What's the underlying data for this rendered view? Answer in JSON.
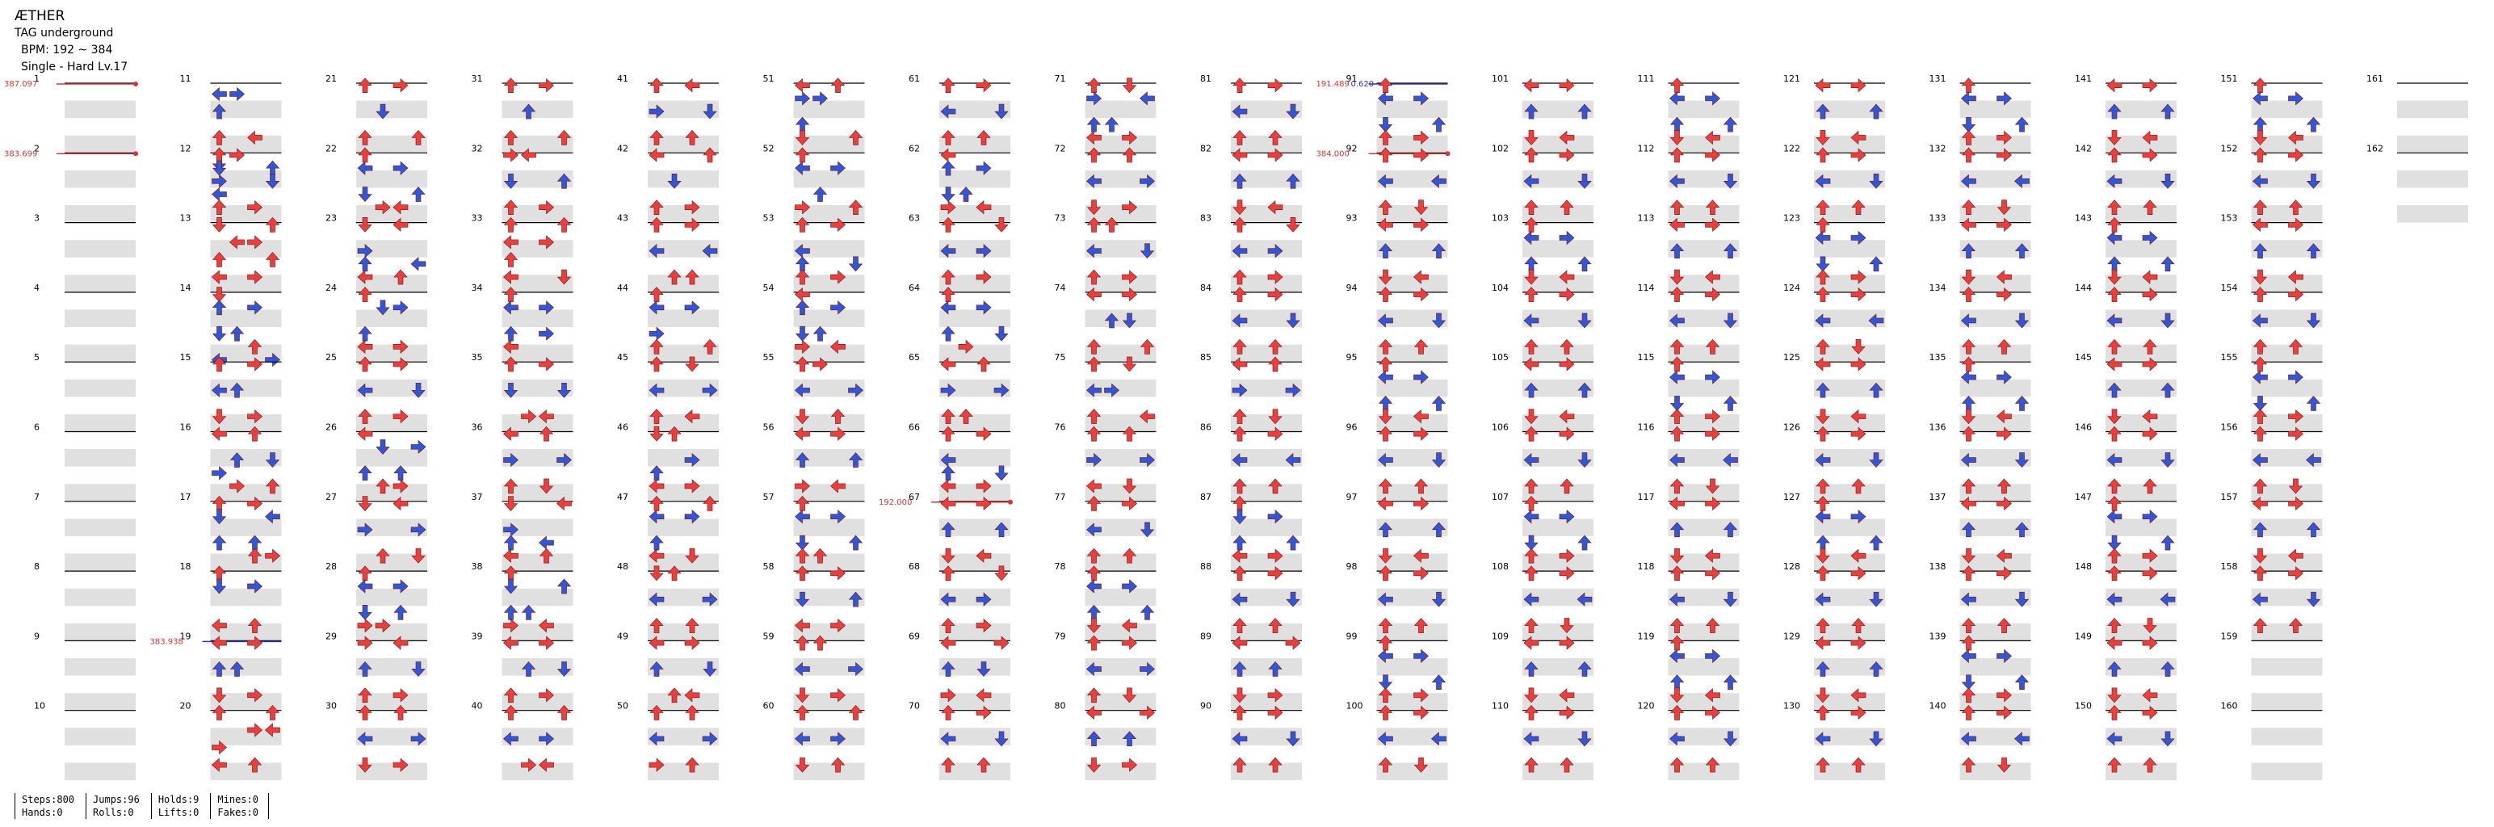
{
  "header": {
    "title": "ÆTHER",
    "subtitle": "TAG underground",
    "bpm": "BPM: 192 ~ 384",
    "difficulty": "Single - Hard  Lv.17"
  },
  "colors": {
    "quarter": "#e8403e",
    "eighth": "#3057d8",
    "hold": "#9be39b",
    "mine": "#f2d64a",
    "bpm_marker": "#d83434",
    "stop_marker": "#3030c8",
    "row_band": "#e0e0e0"
  },
  "measures": [
    {
      "n": "1",
      "bpm": "387.097",
      "notes": ""
    },
    {
      "n": "2",
      "bpm": "383.699",
      "notes": ""
    },
    {
      "n": "3",
      "notes": ""
    },
    {
      "n": "4",
      "notes": ""
    },
    {
      "n": "5",
      "notes": ""
    },
    {
      "n": "6",
      "notes": ""
    },
    {
      "n": "7",
      "notes": ""
    },
    {
      "n": "8",
      "notes": ""
    },
    {
      "n": "9",
      "notes": ""
    },
    {
      "n": "10",
      "notes": ""
    },
    {
      "n": "11",
      "notes": "2r:0L,1R;6r:0U;12r:0U,2L;18r:0D"
    },
    {
      "n": "12",
      "notes": "0U,1R;3r:0D,3U;6r:0R,3D;9r:0L;12r:0U,2R"
    },
    {
      "n": "13",
      "notes": "0D,3U;4r:1L,2R;8r:0U,3U;12r:0L,2R"
    },
    {
      "n": "14",
      "notes": "0D;3r:0U,2R;9r:0D,1U;12r:2U;15r:0L,3R"
    },
    {
      "n": "15",
      "notes": "0U,2R;6r:0L,1U;12r:0D,2R"
    },
    {
      "n": "16",
      "notes": "0L,2U;6r:1U,3D;9r:0R;12r:1R,3U"
    },
    {
      "n": "17",
      "notes": "0U,2R;3r:0D,3L;9r:0U,2U;12r:2U,3R"
    },
    {
      "n": "18",
      "notes": "0U;3r:0D,2R;12r:0L,2U"
    },
    {
      "n": "19",
      "stop": "383.938",
      "notes": "0L,2R;6r:0U,1U;12r:0D,2R"
    },
    {
      "n": "20",
      "notes": "0U,3U;4r:2R,3L;8r:0R;12r:0L,2U"
    },
    {
      "n": "21",
      "notes": "0U,2R;6r:1D;12r:0U,3U"
    },
    {
      "n": "22",
      "notes": "0U;3r:0L,2R;9r:0D,3U;12r:1R,2L"
    },
    {
      "n": "23",
      "notes": "0D,2L;6r:0R;9r:0U,3L;12r:0L,2U"
    },
    {
      "n": "24",
      "notes": "0U;3r:1D,2R;9r:0U;12r:0L,2R"
    },
    {
      "n": "25",
      "notes": "0U,2R;6r:0L,3D;12r:0U,2R"
    },
    {
      "n": "26",
      "notes": "0L;3r:1D,3R;9r:0U,2U;12r:1U,2R"
    },
    {
      "n": "27",
      "notes": "0D,2L;6r:0R,3R;12r:1U,3D"
    },
    {
      "n": "28",
      "notes": "0U;3r:0L,2R;9r:0D,2U;12r:0R,1R"
    },
    {
      "n": "29",
      "notes": "0R,2L;6r:0U,3D;12r:0U,2R"
    },
    {
      "n": "30",
      "notes": "0U,2U;6r:0L,3R;12r:0D,2R"
    },
    {
      "n": "31",
      "notes": "0U,2R;6r:1U;12r:0U,3U"
    },
    {
      "n": "32",
      "notes": "0R,1L;6r:0D,3U;12r:0U,2R"
    },
    {
      "n": "33",
      "notes": "0U,3U;4r:0L,2R;8r:0U;12r:0L,3D"
    },
    {
      "n": "34",
      "notes": "0U;3r:0L,2R;9r:0U,2R;12r:0L"
    },
    {
      "n": "35",
      "notes": "0U,2R;6r:0D,3D;12r:1R,2L"
    },
    {
      "n": "36",
      "notes": "0L,2U;6r:0R,3R;12r:0U,2D"
    },
    {
      "n": "37",
      "notes": "0D,3L;6r:0R;9r:0U,2L;12r:0L,2U"
    },
    {
      "n": "38",
      "notes": "0U;3r:0D,3U;9r:0U,1U;12r:0R,2L"
    },
    {
      "n": "39",
      "notes": "0L,2R;6r:1U,3D;12r:0U,2R"
    },
    {
      "n": "40",
      "notes": "0U,3U;6r:0L,2R;12r:1R,2L"
    },
    {
      "n": "41",
      "notes": "0U,2L;6r:0R,3D;12r:0U,2U"
    },
    {
      "n": "42",
      "notes": "0L,3U;6r:1D;12r:0U,2R"
    },
    {
      "n": "43",
      "notes": "0U,2R;6r:0L,3L;12r:1U,2U"
    },
    {
      "n": "44",
      "notes": "0U;3r:0L,2R;9r:0R;12r:0U,3U"
    },
    {
      "n": "45",
      "notes": "0U,2D;6r:0L,3R;12r:0U,2L"
    },
    {
      "n": "46",
      "notes": "0D,1U;6r:2R;9r:0U;12r:0L,2R"
    },
    {
      "n": "47",
      "notes": "0U,3U;3r:0L,2R;9r:0U;12r:0L,2D"
    },
    {
      "n": "48",
      "notes": "0D,1U;6r:0L,3R;12r:0U,2U"
    },
    {
      "n": "49",
      "notes": "0L,2R;6r:0U,3D;12r:1U,2L"
    },
    {
      "n": "50",
      "notes": "0U,2U;6r:0L,3R;12r:0R,2U"
    },
    {
      "n": "51",
      "notes": "0L,2U;3r:0R,1R;9r:0U;12r:0D,3U"
    },
    {
      "n": "52",
      "notes": "0U;3r:0L,2R;9r:1U;12r:0R,3U"
    },
    {
      "n": "53",
      "notes": "0U,2R;6r:0L;9r:0U,3D;12r:0U,2R"
    },
    {
      "n": "54",
      "notes": "0L;3r:0U,2R;9r:0D,1U;12r:0R,2L"
    },
    {
      "n": "55",
      "notes": "0U,1R;6r:0L,3R;12r:0D,2U"
    },
    {
      "n": "56",
      "notes": "0L,2R;6r:0U,3U;12r:0R,2L"
    },
    {
      "n": "57",
      "notes": "0U;3r:0L,2R;9r:0D,3U;12r:0U,1U"
    },
    {
      "n": "58",
      "notes": "0U,2R;6r:0D,3U;12r:0L,2R"
    },
    {
      "n": "59",
      "notes": "0U,1U;6r:0L,3R;12r:0D,2R"
    },
    {
      "n": "60",
      "notes": "0U,3U;6r:0L,2R;12r:0D,2U"
    },
    {
      "n": "61",
      "notes": "0U,2R;6r:0L,3D;12r:0U,2U"
    },
    {
      "n": "62",
      "notes": "0L;3r:0U,2R;9r:0D,1U;12r:0R,2L"
    },
    {
      "n": "63",
      "notes": "0U,3D;6r:0L,2R;12r:0U,2R"
    },
    {
      "n": "64",
      "notes": "0U;3r:0L,2R;9r:0U,3D;12r:1R"
    },
    {
      "n": "65",
      "notes": "0L,2U;6r:0R,3R;12r:0U,1U"
    },
    {
      "n": "66",
      "notes": "0U,2R;6r:0L;9r:0U,3D;12r:0L,2R"
    },
    {
      "n": "67",
      "bpm": "192.000",
      "notes": "0L,2R;6r:0U,3U;12r:0D,2L"
    },
    {
      "n": "68",
      "notes": "0U,3D;6r:0L,2R;12r:0U,2R"
    },
    {
      "n": "69",
      "notes": "0L,3R;6r:0U,2D;12r:0R,2L"
    },
    {
      "n": "70",
      "notes": "0U,2R;6r:0L,3D;12r:0U,2U"
    },
    {
      "n": "71",
      "notes": "0U,2D;3r:0R,3L;9r:0U,1U;12r:0L,2R"
    },
    {
      "n": "72",
      "notes": "0U,2U;6r:0L,3R;12r:0D,2R"
    },
    {
      "n": "73",
      "notes": "0U,1U;6r:0L,3D;12r:0U,2R"
    },
    {
      "n": "74",
      "notes": "0L,2R;6r:1U,2D;12r:0U,3U"
    },
    {
      "n": "75",
      "notes": "0U,2D;6r:0L,1R;12r:0U,3L"
    },
    {
      "n": "76",
      "notes": "0U,2U;6r:0R,3R;12r:0L,2D"
    },
    {
      "n": "77",
      "notes": "0U,2R;6r:0L,3D;12r:0U,2U"
    },
    {
      "n": "78",
      "notes": "0U;3r:0L,2R;9r:0U,3U;12r:0D,2L"
    },
    {
      "n": "79",
      "notes": "0U,2R;6r:0L,3R;12r:0U,2D"
    },
    {
      "n": "80",
      "notes": "0L,3R;6r:0U,2U;12r:0D,2R"
    },
    {
      "n": "81",
      "notes": "0U,2R;6r:0L,3D;12r:0U,2U"
    },
    {
      "n": "82",
      "notes": "0L,2R;6r:0U,3U;12r:0D,2L"
    },
    {
      "n": "83",
      "notes": "0U,3D;6r:0L,2R;12r:0U,2R"
    },
    {
      "n": "84",
      "notes": "0U,2R;6r:0L,3D;12r:0U,2U"
    },
    {
      "n": "85",
      "notes": "0L,2U;6r:0R,3R;12r:0U,2D"
    },
    {
      "n": "86",
      "notes": "0U,2R;6r:0L,3L;12r:0U,2U"
    },
    {
      "n": "87",
      "notes": "0U;3r:0D,2R;9r:0U,3U;12r:0L,2R"
    },
    {
      "n": "88",
      "notes": "0U,2R;6r:0L,3D;12r:0U,2U"
    },
    {
      "n": "89",
      "notes": "0L,3R;6r:0U,2U;12r:0D,2R"
    },
    {
      "n": "90",
      "notes": "0U,2R;6r:0L,3D;12r:0U,2U"
    },
    {
      "n": "91",
      "stop": "191.489",
      "stop_extra": "0.620",
      "notes": "0U;3r:0L,2R;9r:0D,3U;12r:0U,2R"
    },
    {
      "n": "92",
      "bpm": "384.000",
      "notes": "0U,2R;6r:0L,3L;12r:0U,2D"
    },
    {
      "n": "93",
      "notes": "0L,2R;6r:0U,3U;12r:0D,2L"
    },
    {
      "n": "94",
      "notes": "0U,2R;6r:0L,3D;12r:0U,2U"
    },
    {
      "n": "95",
      "notes": "0U;3r:0L,2R;9r:0U,3U;12r:0D,2L"
    },
    {
      "n": "96",
      "notes": "0U,2R;6r:0L,3D;12r:0U,2U"
    },
    {
      "n": "97",
      "notes": "0L,2R;6r:0U,3U;12r:0D,2L"
    },
    {
      "n": "98",
      "notes": "0U,2R;6r:0L,3D;12r:0U,2U"
    },
    {
      "n": "99",
      "notes": "0U;3r:0L,2R;9r:0D,3U;12r:0U,2R"
    },
    {
      "n": "100",
      "notes": "0U,2R;6r:0L,3L;12r:0U,2D"
    },
    {
      "n": "101",
      "notes": "0L,2R;6r:0U,3U;12r:0D,2L"
    },
    {
      "n": "102",
      "notes": "0U,2R;6r:0L,3D;12r:0U,2U"
    },
    {
      "n": "103",
      "notes": "0U;3r:0L,2R;9r:0U,3U;12r:0D,2L"
    },
    {
      "n": "104",
      "notes": "0U,2R;6r:0L,3D;12r:0U,2U"
    },
    {
      "n": "105",
      "notes": "0L,2R;6r:0U,3U;12r:0D,2L"
    },
    {
      "n": "106",
      "notes": "0U,2R;6r:0L,3D;12r:0U,2U"
    },
    {
      "n": "107",
      "notes": "0U;3r:0L,2R;9r:0D,3U;12r:0U,2R"
    },
    {
      "n": "108",
      "notes": "0U,2R;6r:0L,3L;12r:0U,2D"
    },
    {
      "n": "109",
      "notes": "0L,2R;6r:0U,3U;12r:0D,2L"
    },
    {
      "n": "110",
      "notes": "0U,2R;6r:0L,3D;12r:0U,2U"
    },
    {
      "n": "111",
      "notes": "0U;3r:0L,2R;9r:0U,3U;12r:0D,2L"
    },
    {
      "n": "112",
      "notes": "0U,2R;6r:0L,3D;12r:0U,2U"
    },
    {
      "n": "113",
      "notes": "0L,2R;6r:0U,3U;12r:0D,2L"
    },
    {
      "n": "114",
      "notes": "0U,2R;6r:0L,3D;12r:0U,2U"
    },
    {
      "n": "115",
      "notes": "0U;3r:0L,2R;9r:0D,3U;12r:0U,2R"
    },
    {
      "n": "116",
      "notes": "0U,2R;6r:0L,3L;12r:0U,2D"
    },
    {
      "n": "117",
      "notes": "0L,2R;6r:0U,3U;12r:0D,2L"
    },
    {
      "n": "118",
      "notes": "0U,2R;6r:0L,3D;12r:0U,2U"
    },
    {
      "n": "119",
      "notes": "0U;3r:0L,2R;9r:0U,3U;12r:0D,2L"
    },
    {
      "n": "120",
      "notes": "0U,2R;6r:0L,3D;12r:0U,2U"
    },
    {
      "n": "121",
      "notes": "0L,2R;6r:0U,3U;12r:0D,2L"
    },
    {
      "n": "122",
      "notes": "0U,2R;6r:0L,3D;12r:0U,2U"
    },
    {
      "n": "123",
      "notes": "0U;3r:0L,2R;9r:0D,3U;12r:0U,2R"
    },
    {
      "n": "124",
      "notes": "0U,2R;6r:0L,3L;12r:0U,2D"
    },
    {
      "n": "125",
      "notes": "0L,2R;6r:0U,3U;12r:0D,2L"
    },
    {
      "n": "126",
      "notes": "0U,2R;6r:0L,3D;12r:0U,2U"
    },
    {
      "n": "127",
      "notes": "0U;3r:0L,2R;9r:0U,3U;12r:0D,2L"
    },
    {
      "n": "128",
      "notes": "0U,2R;6r:0L,3D;12r:0U,2U"
    },
    {
      "n": "129",
      "notes": "0L,2R;6r:0U,3U;12r:0D,2L"
    },
    {
      "n": "130",
      "notes": "0U,2R;6r:0L,3D;12r:0U,2U"
    },
    {
      "n": "131",
      "notes": "0U;3r:0L,2R;9r:0D,3U;12r:0U,2R"
    },
    {
      "n": "132",
      "notes": "0U,2R;6r:0L,3L;12r:0U,2D"
    },
    {
      "n": "133",
      "notes": "0L,2R;6r:0U,3U;12r:0D,2L"
    },
    {
      "n": "134",
      "notes": "0U,2R;6r:0L,3D;12r:0U,2U"
    },
    {
      "n": "135",
      "notes": "0U;3r:0L,2R;9r:0U,3U;12r:0D,2L"
    },
    {
      "n": "136",
      "notes": "0U,2R;6r:0L,3D;12r:0U,2U"
    },
    {
      "n": "137",
      "notes": "0L,2R;6r:0U,3U;12r:0D,2L"
    },
    {
      "n": "138",
      "notes": "0U,2R;6r:0L,3D;12r:0U,2U"
    },
    {
      "n": "139",
      "notes": "0U;3r:0L,2R;9r:0D,3U;12r:0U,2R"
    },
    {
      "n": "140",
      "notes": "0U,2R;6r:0L,3L;12r:0U,2D"
    },
    {
      "n": "141",
      "notes": "0L,2R;6r:0U,3U;12r:0D,2L"
    },
    {
      "n": "142",
      "notes": "0U,2R;6r:0L,3D;12r:0U,2U"
    },
    {
      "n": "143",
      "notes": "0U;3r:0L,2R;9r:0U,3U;12r:0D,2L"
    },
    {
      "n": "144",
      "notes": "0U,2R;6r:0L,3D;12r:0U,2U"
    },
    {
      "n": "145",
      "notes": "0L,2R;6r:0U,3U;12r:0D,2L"
    },
    {
      "n": "146",
      "notes": "0U,2R;6r:0L,3D;12r:0U,2U"
    },
    {
      "n": "147",
      "notes": "0U;3r:0L,2R;9r:0D,3U;12r:0U,2R"
    },
    {
      "n": "148",
      "notes": "0U,2R;6r:0L,3L;12r:0U,2D"
    },
    {
      "n": "149",
      "notes": "0L,2R;6r:0U,3U;12r:0D,2L"
    },
    {
      "n": "150",
      "notes": "0U,2R;6r:0L,3D;12r:0U,2U"
    },
    {
      "n": "151",
      "notes": "0U;3r:0L,2R;9r:0U,3U;12r:0D,2L"
    },
    {
      "n": "152",
      "notes": "0U,2R;6r:0L,3D;12r:0U,2U"
    },
    {
      "n": "153",
      "notes": "0L,2R;6r:0U,3U;12r:0D,2L"
    },
    {
      "n": "154",
      "notes": "0U,2R;6r:0L,3D;12r:0U,2U"
    },
    {
      "n": "155",
      "notes": "0U;3r:0L,2R;9r:0D,3U;12r:0U,2R"
    },
    {
      "n": "156",
      "notes": "0U,2R;6r:0L,3L;12r:0U,2D"
    },
    {
      "n": "157",
      "notes": "0L,2R;6r:0U,3U;12r:0D,2L"
    },
    {
      "n": "158",
      "notes": "0U,2R;6r:0L,3D;12r:0U,2U"
    },
    {
      "n": "159",
      "notes": ""
    },
    {
      "n": "160",
      "notes": ""
    },
    {
      "n": "161",
      "notes": ""
    },
    {
      "n": "162",
      "notes": ""
    }
  ],
  "stats": [
    [
      "Steps:800",
      "Hands:0"
    ],
    [
      "Jumps:96",
      "Rolls:0"
    ],
    [
      "Holds:9",
      "Lifts:0"
    ],
    [
      "Mines:0",
      "Fakes:0"
    ]
  ]
}
